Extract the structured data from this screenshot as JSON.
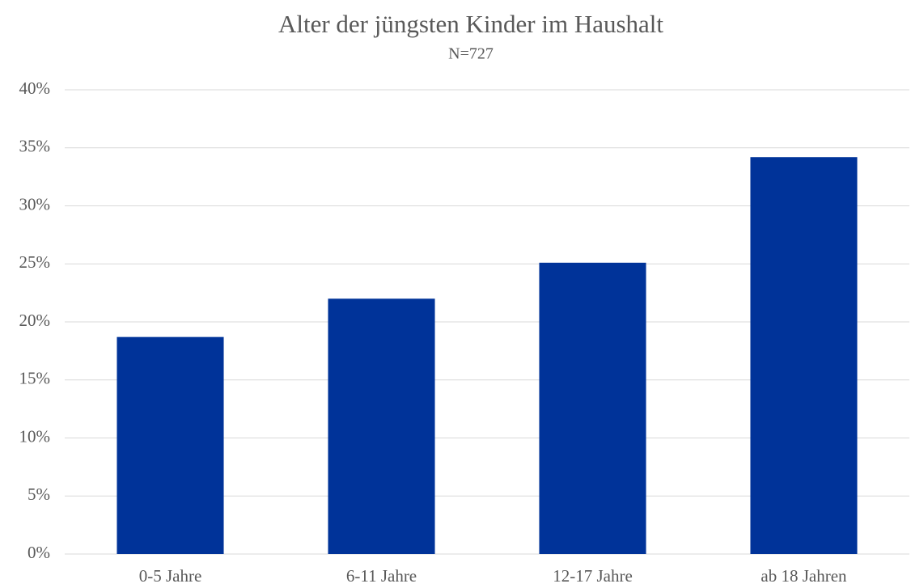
{
  "chart_data": {
    "type": "bar",
    "title": "Alter der jüngsten Kinder im Haushalt",
    "subtitle": "N=727",
    "categories": [
      "0-5 Jahre",
      "6-11 Jahre",
      "12-17 Jahre",
      "ab 18 Jahren"
    ],
    "values": [
      18.7,
      22.0,
      25.1,
      34.2
    ],
    "color": "#003399",
    "ylim": [
      0,
      40
    ],
    "yticks": [
      {
        "value": 0,
        "label": "0%"
      },
      {
        "value": 5,
        "label": "5%"
      },
      {
        "value": 10,
        "label": "10%"
      },
      {
        "value": 15,
        "label": "15%"
      },
      {
        "value": 20,
        "label": "20%"
      },
      {
        "value": 25,
        "label": "25%"
      },
      {
        "value": 30,
        "label": "30%"
      },
      {
        "value": 35,
        "label": "35%"
      },
      {
        "value": 40,
        "label": "40%"
      }
    ],
    "grid": true
  }
}
